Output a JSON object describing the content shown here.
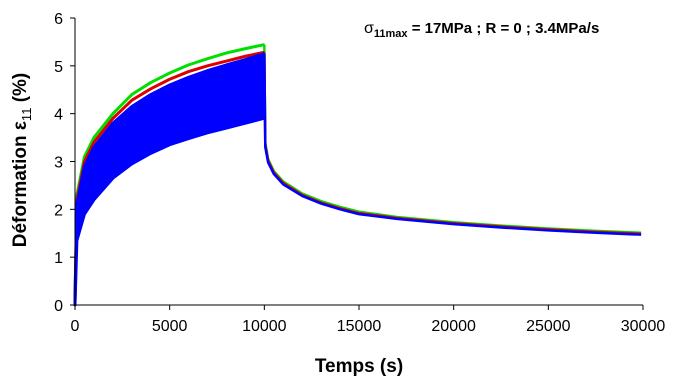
{
  "chart_data": {
    "type": "line",
    "title": "",
    "annotation": {
      "symbol": "σ",
      "subscript": "11max",
      "text": " = 17MPa ; R = 0 ; 3.4MPa/s"
    },
    "xlabel": "Temps (s)",
    "ylabel": {
      "prefix": "Déformation  ε",
      "subscript": "11",
      "suffix": " (%)"
    },
    "xlim": [
      0,
      30000
    ],
    "ylim": [
      0,
      6
    ],
    "xticks": [
      0,
      5000,
      10000,
      15000,
      20000,
      25000,
      30000
    ],
    "yticks": [
      0,
      1,
      2,
      3,
      4,
      5,
      6
    ],
    "grid": false,
    "legend": "none",
    "series": [
      {
        "color": "#00e000",
        "loading_envelope": {
          "max": [
            [
              0,
              0.1
            ],
            [
              100,
              2.3
            ],
            [
              500,
              3.1
            ],
            [
              1000,
              3.5
            ],
            [
              2000,
              4.0
            ],
            [
              3000,
              4.4
            ],
            [
              4000,
              4.65
            ],
            [
              5000,
              4.85
            ],
            [
              6000,
              5.02
            ],
            [
              7000,
              5.15
            ],
            [
              8000,
              5.27
            ],
            [
              9000,
              5.36
            ],
            [
              9950,
              5.44
            ]
          ],
          "min": [
            [
              0,
              0.1
            ],
            [
              100,
              2.3
            ],
            [
              500,
              3.1
            ],
            [
              1000,
              3.5
            ],
            [
              2000,
              4.0
            ],
            [
              3000,
              4.4
            ],
            [
              4000,
              4.65
            ],
            [
              5000,
              4.85
            ],
            [
              6000,
              5.02
            ],
            [
              7000,
              5.15
            ],
            [
              8000,
              5.27
            ],
            [
              9000,
              5.36
            ],
            [
              9950,
              5.44
            ]
          ]
        },
        "recovery": [
          [
            10000,
            5.44
          ],
          [
            10050,
            3.4
          ],
          [
            10200,
            3.05
          ],
          [
            10500,
            2.8
          ],
          [
            11000,
            2.58
          ],
          [
            12000,
            2.33
          ],
          [
            13000,
            2.17
          ],
          [
            14000,
            2.05
          ],
          [
            15000,
            1.95
          ],
          [
            17000,
            1.84
          ],
          [
            20000,
            1.73
          ],
          [
            22500,
            1.66
          ],
          [
            25000,
            1.6
          ],
          [
            27500,
            1.55
          ],
          [
            29900,
            1.51
          ]
        ]
      },
      {
        "color": "#dd0000",
        "loading_envelope": {
          "max": [
            [
              0,
              0.1
            ],
            [
              100,
              2.2
            ],
            [
              500,
              3.0
            ],
            [
              1000,
              3.4
            ],
            [
              2000,
              3.9
            ],
            [
              3000,
              4.28
            ],
            [
              4000,
              4.52
            ],
            [
              5000,
              4.72
            ],
            [
              6000,
              4.88
            ],
            [
              7000,
              5.0
            ],
            [
              8000,
              5.1
            ],
            [
              9000,
              5.2
            ],
            [
              9950,
              5.28
            ]
          ],
          "min": [
            [
              0,
              0.1
            ],
            [
              100,
              2.2
            ],
            [
              500,
              3.0
            ],
            [
              1000,
              3.4
            ],
            [
              2000,
              3.9
            ],
            [
              3000,
              4.28
            ],
            [
              4000,
              4.52
            ],
            [
              5000,
              4.72
            ],
            [
              6000,
              4.88
            ],
            [
              7000,
              5.0
            ],
            [
              8000,
              5.1
            ],
            [
              9000,
              5.2
            ],
            [
              9950,
              5.28
            ]
          ]
        },
        "recovery": [
          [
            10000,
            5.28
          ],
          [
            10050,
            3.35
          ],
          [
            10200,
            3.02
          ],
          [
            10500,
            2.77
          ],
          [
            11000,
            2.55
          ],
          [
            12000,
            2.3
          ],
          [
            13000,
            2.14
          ],
          [
            14000,
            2.02
          ],
          [
            15000,
            1.92
          ],
          [
            17000,
            1.82
          ],
          [
            20000,
            1.71
          ],
          [
            22500,
            1.64
          ],
          [
            25000,
            1.58
          ],
          [
            27500,
            1.53
          ],
          [
            29900,
            1.49
          ]
        ]
      },
      {
        "color": "#0000ff",
        "loading_envelope": {
          "max": [
            [
              0,
              0.1
            ],
            [
              100,
              2.1
            ],
            [
              500,
              2.9
            ],
            [
              1000,
              3.3
            ],
            [
              2000,
              3.8
            ],
            [
              3000,
              4.15
            ],
            [
              4000,
              4.4
            ],
            [
              5000,
              4.6
            ],
            [
              6000,
              4.76
            ],
            [
              7000,
              4.9
            ],
            [
              8000,
              5.02
            ],
            [
              9000,
              5.13
            ],
            [
              9950,
              5.25
            ]
          ],
          "min": [
            [
              0,
              0.0
            ],
            [
              100,
              1.35
            ],
            [
              500,
              1.9
            ],
            [
              1000,
              2.2
            ],
            [
              2000,
              2.65
            ],
            [
              3000,
              2.95
            ],
            [
              4000,
              3.17
            ],
            [
              5000,
              3.35
            ],
            [
              6000,
              3.48
            ],
            [
              7000,
              3.6
            ],
            [
              8000,
              3.7
            ],
            [
              9000,
              3.8
            ],
            [
              9950,
              3.9
            ]
          ]
        },
        "recovery": [
          [
            10000,
            5.25
          ],
          [
            10050,
            3.3
          ],
          [
            10200,
            2.98
          ],
          [
            10500,
            2.74
          ],
          [
            11000,
            2.52
          ],
          [
            12000,
            2.28
          ],
          [
            13000,
            2.12
          ],
          [
            14000,
            2.0
          ],
          [
            15000,
            1.9
          ],
          [
            17000,
            1.8
          ],
          [
            20000,
            1.69
          ],
          [
            22500,
            1.62
          ],
          [
            25000,
            1.56
          ],
          [
            27500,
            1.51
          ],
          [
            29900,
            1.47
          ]
        ]
      }
    ]
  }
}
